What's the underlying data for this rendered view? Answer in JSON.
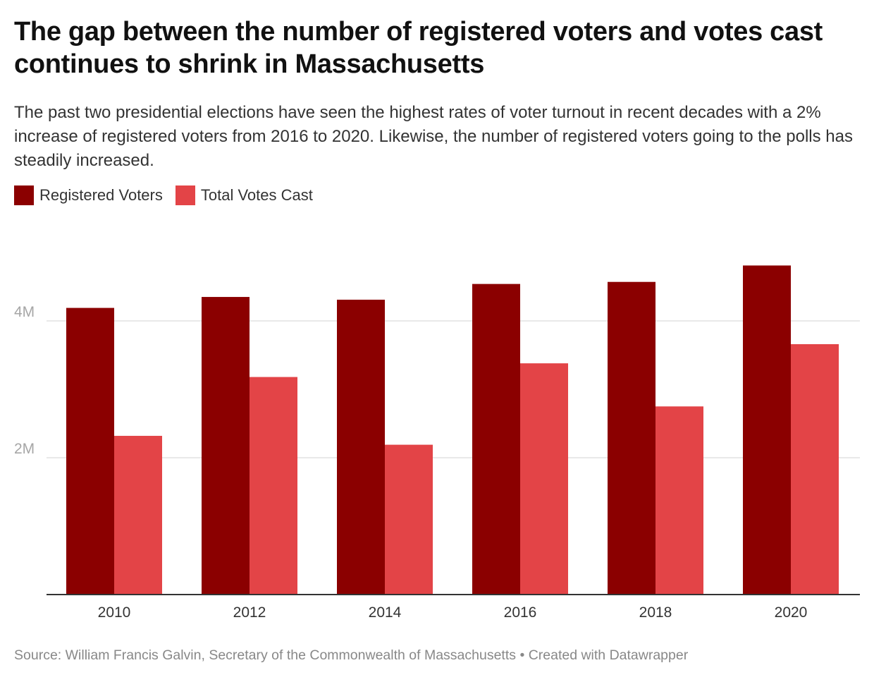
{
  "title": "The gap between the number of registered voters and votes cast continues to shrink in Massachusetts",
  "subtitle": "The past two presidential elections have seen the highest rates of voter turnout in recent decades with a 2% increase of registered voters from 2016 to 2020. Likewise, the number of registered voters going to the polls has steadily increased.",
  "footer": {
    "source": "Source: William Francis Galvin, Secretary of the Commonwealth of Massachusetts",
    "separator": "•",
    "credit": "Created with Datawrapper"
  },
  "colors": {
    "registered": "#8b0000",
    "votes_cast": "#e34447",
    "gridline": "#e2e2e2",
    "baseline": "#333333"
  },
  "chart_data": {
    "type": "bar",
    "categories": [
      "2010",
      "2012",
      "2014",
      "2016",
      "2018",
      "2020"
    ],
    "series": [
      {
        "name": "Registered Voters",
        "values": [
          4190000,
          4350000,
          4310000,
          4540000,
          4570000,
          4810000
        ]
      },
      {
        "name": "Total Votes Cast",
        "values": [
          2320000,
          3180000,
          2190000,
          3380000,
          2750000,
          3660000
        ]
      }
    ],
    "y_ticks": [
      {
        "value": 2000000,
        "label": "2M"
      },
      {
        "value": 4000000,
        "label": "4M"
      }
    ],
    "ylim": [
      0,
      5000000
    ],
    "grid": true,
    "legend_position": "top-left"
  }
}
